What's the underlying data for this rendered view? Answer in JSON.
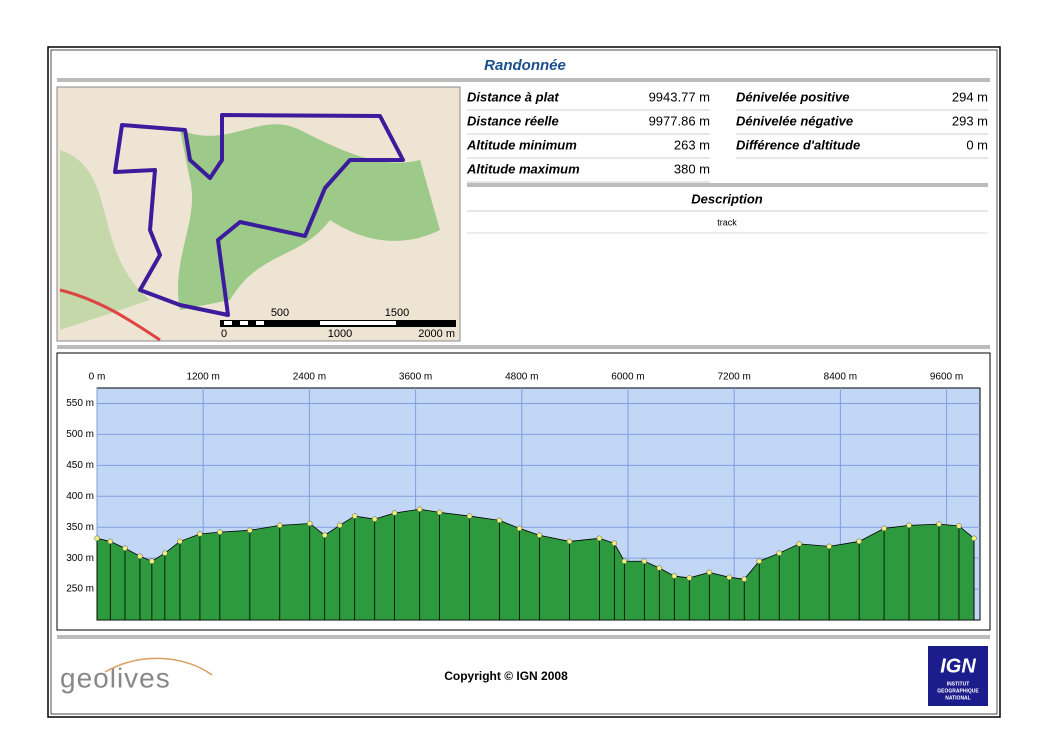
{
  "header": {
    "title": "Randonnée"
  },
  "map": {
    "scale_labels": [
      "500",
      "1500",
      "0",
      "1000",
      "2000 m"
    ]
  },
  "stats": {
    "left": [
      {
        "label": "Distance à plat",
        "value": "9943.77 m"
      },
      {
        "label": "Distance réelle",
        "value": "9977.86 m"
      },
      {
        "label": "Altitude minimum",
        "value": "263 m"
      },
      {
        "label": "Altitude maximum",
        "value": "380 m"
      }
    ],
    "right": [
      {
        "label": "Dénivelée positive",
        "value": "294 m"
      },
      {
        "label": "Dénivelée négative",
        "value": "293 m"
      },
      {
        "label": "Différence d'altitude",
        "value": "0 m"
      }
    ]
  },
  "description": {
    "heading": "Description",
    "text": "track"
  },
  "chart_data": {
    "type": "area",
    "x": [
      0,
      150,
      316,
      485,
      620,
      767,
      937,
      1163,
      1388,
      1727,
      2065,
      2404,
      2573,
      2743,
      2912,
      3138,
      3363,
      3646,
      3871,
      4210,
      4548,
      4774,
      5000,
      5339,
      5677,
      5846,
      5959,
      6185,
      6354,
      6524,
      6693,
      6919,
      7144,
      7314,
      7483,
      7709,
      7935,
      8273,
      8612,
      8894,
      9176,
      9515,
      9740,
      9910
    ],
    "values": [
      332,
      327,
      316,
      303,
      295,
      308,
      327,
      339,
      342,
      345,
      353,
      356,
      337,
      353,
      368,
      363,
      373,
      379,
      374,
      368,
      361,
      348,
      337,
      327,
      332,
      324,
      295,
      295,
      284,
      271,
      268,
      277,
      269,
      266,
      295,
      308,
      323,
      319,
      327,
      348,
      353,
      355,
      352,
      332
    ],
    "xlim": [
      0,
      9977.86
    ],
    "ylim": [
      200,
      575
    ],
    "xticks": [
      {
        "value": 0,
        "label": "0 m"
      },
      {
        "value": 1200,
        "label": "1200 m"
      },
      {
        "value": 2400,
        "label": "2400 m"
      },
      {
        "value": 3600,
        "label": "3600 m"
      },
      {
        "value": 4800,
        "label": "4800 m"
      },
      {
        "value": 6000,
        "label": "6000 m"
      },
      {
        "value": 7200,
        "label": "7200 m"
      },
      {
        "value": 8400,
        "label": "8400 m"
      },
      {
        "value": 9600,
        "label": "9600 m"
      }
    ],
    "yticks": [
      {
        "value": 250,
        "label": "250 m"
      },
      {
        "value": 300,
        "label": "300 m"
      },
      {
        "value": 350,
        "label": "350 m"
      },
      {
        "value": 400,
        "label": "400 m"
      },
      {
        "value": 450,
        "label": "450 m"
      },
      {
        "value": 500,
        "label": "500 m"
      },
      {
        "value": 550,
        "label": "550 m"
      }
    ],
    "grid": true,
    "color": "#2e9a3e",
    "marker_color": "#f2f07a",
    "background": "#c2d6f6"
  },
  "footer": {
    "brand": "geolives",
    "copyright": "Copyright © IGN 2008",
    "ign": "IGN",
    "ign_sub": [
      "INSTITUT",
      "GEOGRAPHIQUE",
      "NATIONAL"
    ]
  }
}
